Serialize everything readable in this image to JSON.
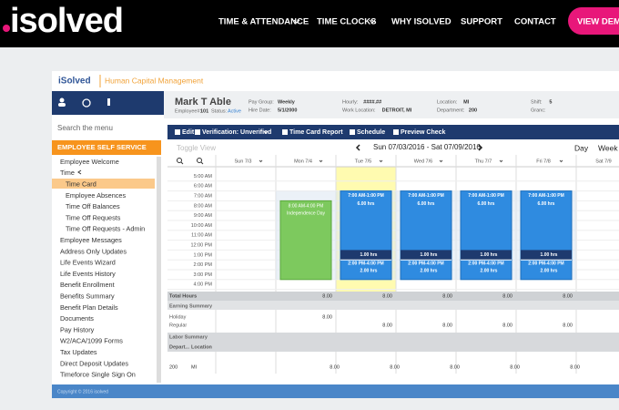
{
  "nav": {
    "logo": "isolved",
    "items": [
      "TIME & ATTENDANCE",
      "TIME CLOCKS",
      "WHY ISOLVED",
      "SUPPORT",
      "CONTACT"
    ],
    "button": "VIEW DEMO"
  },
  "app": {
    "brand": "iSolved",
    "product": "Human Capital Management"
  },
  "sidebar": {
    "search": "Search the menu",
    "section": "EMPLOYEE SELF SERVICE",
    "items": [
      "Employee Welcome",
      "Time",
      "Time Card",
      "Employee Absences",
      "Time Off Balances",
      "Time Off Requests",
      "Time Off Requests - Admin",
      "Employee Messages",
      "Address Only Updates",
      "Life Events Wizard",
      "Life Events History",
      "Benefit Enrollment",
      "Benefits Summary",
      "Benefit Plan Details",
      "Documents",
      "Pay History",
      "W2/ACA/1099 Forms",
      "Tax Updates",
      "Direct Deposit Updates",
      "Timeforce Single Sign On"
    ]
  },
  "employee": {
    "name": "Mark T Able",
    "number_label": "Employee#:",
    "number": "101",
    "status_label": "Status:",
    "status": "Active",
    "fields": [
      {
        "label": "Pay Group:",
        "value": "Weekly"
      },
      {
        "label": "Hire Date:",
        "value": "5/1/2000"
      },
      {
        "label": "Hourly:",
        "value": "####.##"
      },
      {
        "label": "Work Location:",
        "value": "DETROIT, MI"
      },
      {
        "label": "Location:",
        "value": "MI"
      },
      {
        "label": "Department:",
        "value": "200"
      },
      {
        "label": "Shift:",
        "value": "5"
      },
      {
        "label": "Granc:",
        "value": ""
      }
    ]
  },
  "toolbar": [
    "Edit",
    "Verification: Unverified",
    "Time Card Report",
    "Schedule",
    "Preview Check"
  ],
  "calendar": {
    "toggle": "Toggle View",
    "range": "Sun 07/03/2016 - Sat 07/09/2016",
    "views": [
      "Day",
      "Week"
    ],
    "days": [
      "Sun 7/3",
      "Mon 7/4",
      "Tue 7/5",
      "Wed 7/6",
      "Thu 7/7",
      "Fri 7/8",
      "Sat 7/9"
    ],
    "times": [
      "5:00 AM",
      "6:00 AM",
      "7:00 AM",
      "8:00 AM",
      "9:00 AM",
      "10:00 AM",
      "11:00 AM",
      "12:00 PM",
      "1:00 PM",
      "2:00 PM",
      "3:00 PM",
      "4:00 PM"
    ],
    "events": [
      {
        "time": "8:00 AM-4:00 PM",
        "text": "Independence Day"
      },
      {
        "time": "7:00 AM-1:00 PM",
        "text": "6.00 hrs",
        "break": "1.00 hrs",
        "time2": "2:00 PM-4:00 PM",
        "text2": "2.00 hrs"
      },
      {
        "time": "7:00 AM-1:00 PM",
        "text": "6.00 hrs",
        "break": "1.00 hrs",
        "time2": "2:00 PM-4:00 PM",
        "text2": "2.00 hrs"
      },
      {
        "time": "7:00 AM-1:00 PM",
        "text": "6.00 hrs",
        "break": "1.00 hrs",
        "time2": "2:00 PM-4:00 PM",
        "text2": "2.00 hrs"
      },
      {
        "time": "7:00 AM-1:00 PM",
        "text": "6.00 hrs",
        "break": "1.00 hrs",
        "time2": "2:00 PM-4:00 PM",
        "text2": "2.00 hrs"
      }
    ]
  },
  "summary": {
    "total_label": "Total Hours",
    "total": [
      "8.00",
      "8.00",
      "8.00",
      "8.00",
      "8.00"
    ],
    "earning_label": "Earning Summary",
    "holiday_label": "Holiday",
    "holiday": "8.00",
    "regular_label": "Regular",
    "regular": [
      "8.00",
      "8.00",
      "8.00",
      "8.00"
    ],
    "labor_label": "Labor Summary",
    "dept_label": "Depart...",
    "loc_label": "Location",
    "dept": "200",
    "loc": "MI",
    "labor": [
      "8.00",
      "8.00",
      "8.00",
      "8.00",
      "8.00"
    ]
  },
  "footer": "Copyright © 2016 isolved"
}
